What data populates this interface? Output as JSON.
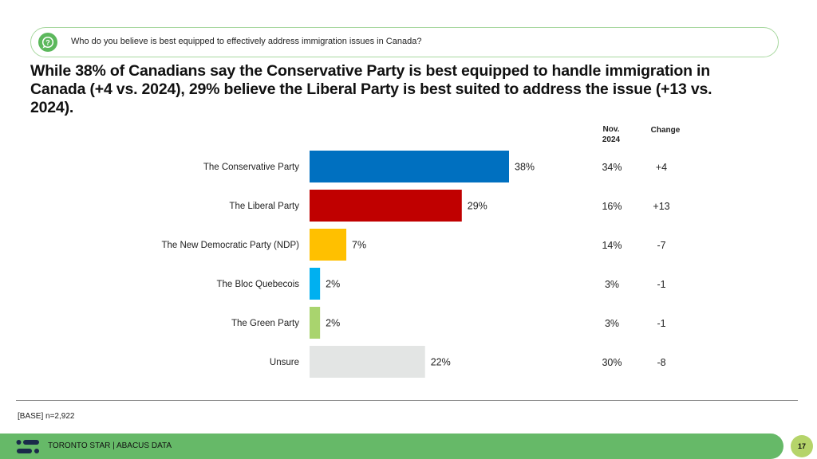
{
  "question": {
    "icon": "question-bubble-icon",
    "text": "Who do you believe is best equipped to effectively address immigration issues in Canada?"
  },
  "headline": "While 38% of Canadians say the Conservative Party is best equipped to handle immigration in Canada (+4 vs. 2024), 29% believe the Liberal Party is best suited to address the issue (+13 vs. 2024).",
  "table_headers": {
    "prior": "Nov. 2024",
    "change": "Change"
  },
  "chart_data": {
    "type": "bar",
    "orientation": "horizontal",
    "title": "",
    "xlabel": "",
    "ylabel": "",
    "xlim": [
      0,
      38
    ],
    "grid": false,
    "categories": [
      "The Conservative Party",
      "The Liberal Party",
      "The New Democratic Party (NDP)",
      "The Bloc Quebecois",
      "The Green Party",
      "Unsure"
    ],
    "values": [
      38,
      29,
      7,
      2,
      2,
      22
    ],
    "value_labels": [
      "38%",
      "29%",
      "7%",
      "2%",
      "2%",
      "22%"
    ],
    "colors": [
      "#0070c0",
      "#c00000",
      "#ffc000",
      "#00b0f0",
      "#a9d46e",
      "#e3e5e4"
    ],
    "comparison_table": {
      "nov_2024": [
        "34%",
        "16%",
        "14%",
        "3%",
        "3%",
        "30%"
      ],
      "change": [
        "+4",
        "+13",
        "-7",
        "-1",
        "-1",
        "-8"
      ]
    }
  },
  "base_note": "[BASE] n=2,922",
  "footer": {
    "logo": "abacus-logo-icon",
    "text": "TORONTO STAR  |  ABACUS DATA",
    "page_number": "17"
  },
  "colors": {
    "footer_green": "#66b968",
    "badge_green": "#b5d46a",
    "icon_green": "#5cb85c",
    "question_border": "#a8d8a0"
  }
}
